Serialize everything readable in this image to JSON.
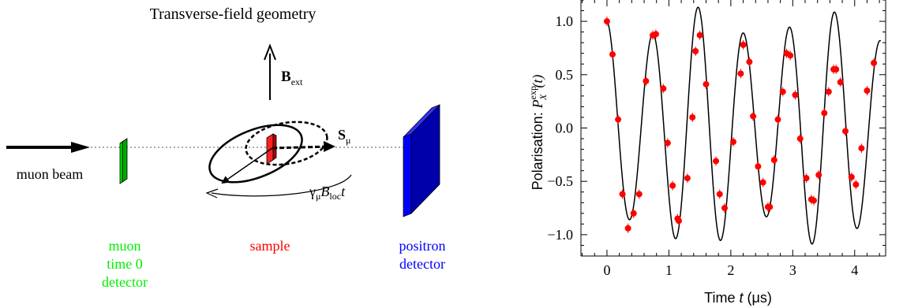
{
  "diagram": {
    "title": "Transverse-field geometry",
    "field_label_main": "B",
    "field_label_sub": "ext",
    "spin_label_main": "S",
    "spin_label_sub": "μ",
    "precession_gamma": "γ",
    "precession_gamma_sub": "μ",
    "precession_B": "B",
    "precession_B_sub": "loc",
    "precession_t": "t",
    "beam_label": "muon beam",
    "start_detector_lines": [
      "muon",
      "time 0",
      "detector"
    ],
    "sample_label": "sample",
    "positron_detector_lines": [
      "positron",
      "detector"
    ],
    "colors": {
      "start_detector": "#00ee00",
      "sample": "#ff0000",
      "positron_detector": "#0000ff",
      "text": "#000000"
    }
  },
  "chart_data": {
    "type": "scatter",
    "title": "",
    "xlabel_prefix": "Time ",
    "xlabel_var": "t",
    "xlabel_suffix": " (μs)",
    "ylabel_prefix": "Polarisation: ",
    "ylabel_var": "P",
    "ylabel_sub": "X",
    "ylabel_sup": "exp",
    "ylabel_arg": "(t)",
    "xlim": [
      -0.42,
      4.5
    ],
    "ylim": [
      -1.2,
      1.2
    ],
    "xticks": [
      0,
      1,
      2,
      3,
      4
    ],
    "xtick_labels": [
      "0",
      "1",
      "2",
      "3",
      "4"
    ],
    "yticks": [
      -1.0,
      -0.5,
      0.0,
      0.5,
      1.0
    ],
    "ytick_labels": [
      "−1.0",
      "−0.5",
      "0.0",
      "0.5",
      "1.0"
    ],
    "grid": false,
    "fit_curve": {
      "function": "cos(2*pi*f*t)*exp(-t/tau)*(1 - a*sin(pi*t))",
      "frequency_MHz": 1.36,
      "tau_us": 100,
      "a": 0.15
    },
    "series": [
      {
        "marker_color": "#ff0000",
        "points": [
          [
            0.0,
            1.0
          ],
          [
            0.09,
            0.69
          ],
          [
            0.18,
            0.08
          ],
          [
            0.25,
            -0.62
          ],
          [
            0.34,
            -0.94
          ],
          [
            0.43,
            -0.8
          ],
          [
            0.52,
            -0.62
          ],
          [
            0.63,
            0.44
          ],
          [
            0.74,
            0.87
          ],
          [
            0.79,
            0.88
          ],
          [
            0.91,
            0.37
          ],
          [
            0.98,
            -0.14
          ],
          [
            1.06,
            -0.54
          ],
          [
            1.14,
            -0.85
          ],
          [
            1.16,
            -0.87
          ],
          [
            1.3,
            -0.47
          ],
          [
            1.38,
            0.1
          ],
          [
            1.43,
            0.72
          ],
          [
            1.5,
            0.87
          ],
          [
            1.6,
            0.41
          ],
          [
            1.76,
            -0.31
          ],
          [
            1.82,
            -0.62
          ],
          [
            1.9,
            -0.75
          ],
          [
            2.04,
            -0.13
          ],
          [
            2.16,
            0.51
          ],
          [
            2.2,
            0.78
          ],
          [
            2.3,
            0.62
          ],
          [
            2.36,
            0.11
          ],
          [
            2.44,
            -0.36
          ],
          [
            2.52,
            -0.51
          ],
          [
            2.6,
            -0.74
          ],
          [
            2.63,
            -0.74
          ],
          [
            2.7,
            -0.3
          ],
          [
            2.76,
            0.08
          ],
          [
            2.84,
            0.34
          ],
          [
            2.9,
            0.7
          ],
          [
            2.96,
            0.68
          ],
          [
            3.04,
            0.31
          ],
          [
            3.12,
            -0.1
          ],
          [
            3.22,
            -0.47
          ],
          [
            3.3,
            -0.67
          ],
          [
            3.34,
            -0.68
          ],
          [
            3.42,
            -0.44
          ],
          [
            3.51,
            0.14
          ],
          [
            3.58,
            0.34
          ],
          [
            3.66,
            0.55
          ],
          [
            3.7,
            0.55
          ],
          [
            3.77,
            0.43
          ],
          [
            3.85,
            -0.03
          ],
          [
            3.95,
            -0.46
          ],
          [
            4.02,
            -0.53
          ],
          [
            4.11,
            -0.19
          ],
          [
            4.2,
            0.35
          ],
          [
            4.31,
            0.61
          ]
        ]
      }
    ]
  }
}
